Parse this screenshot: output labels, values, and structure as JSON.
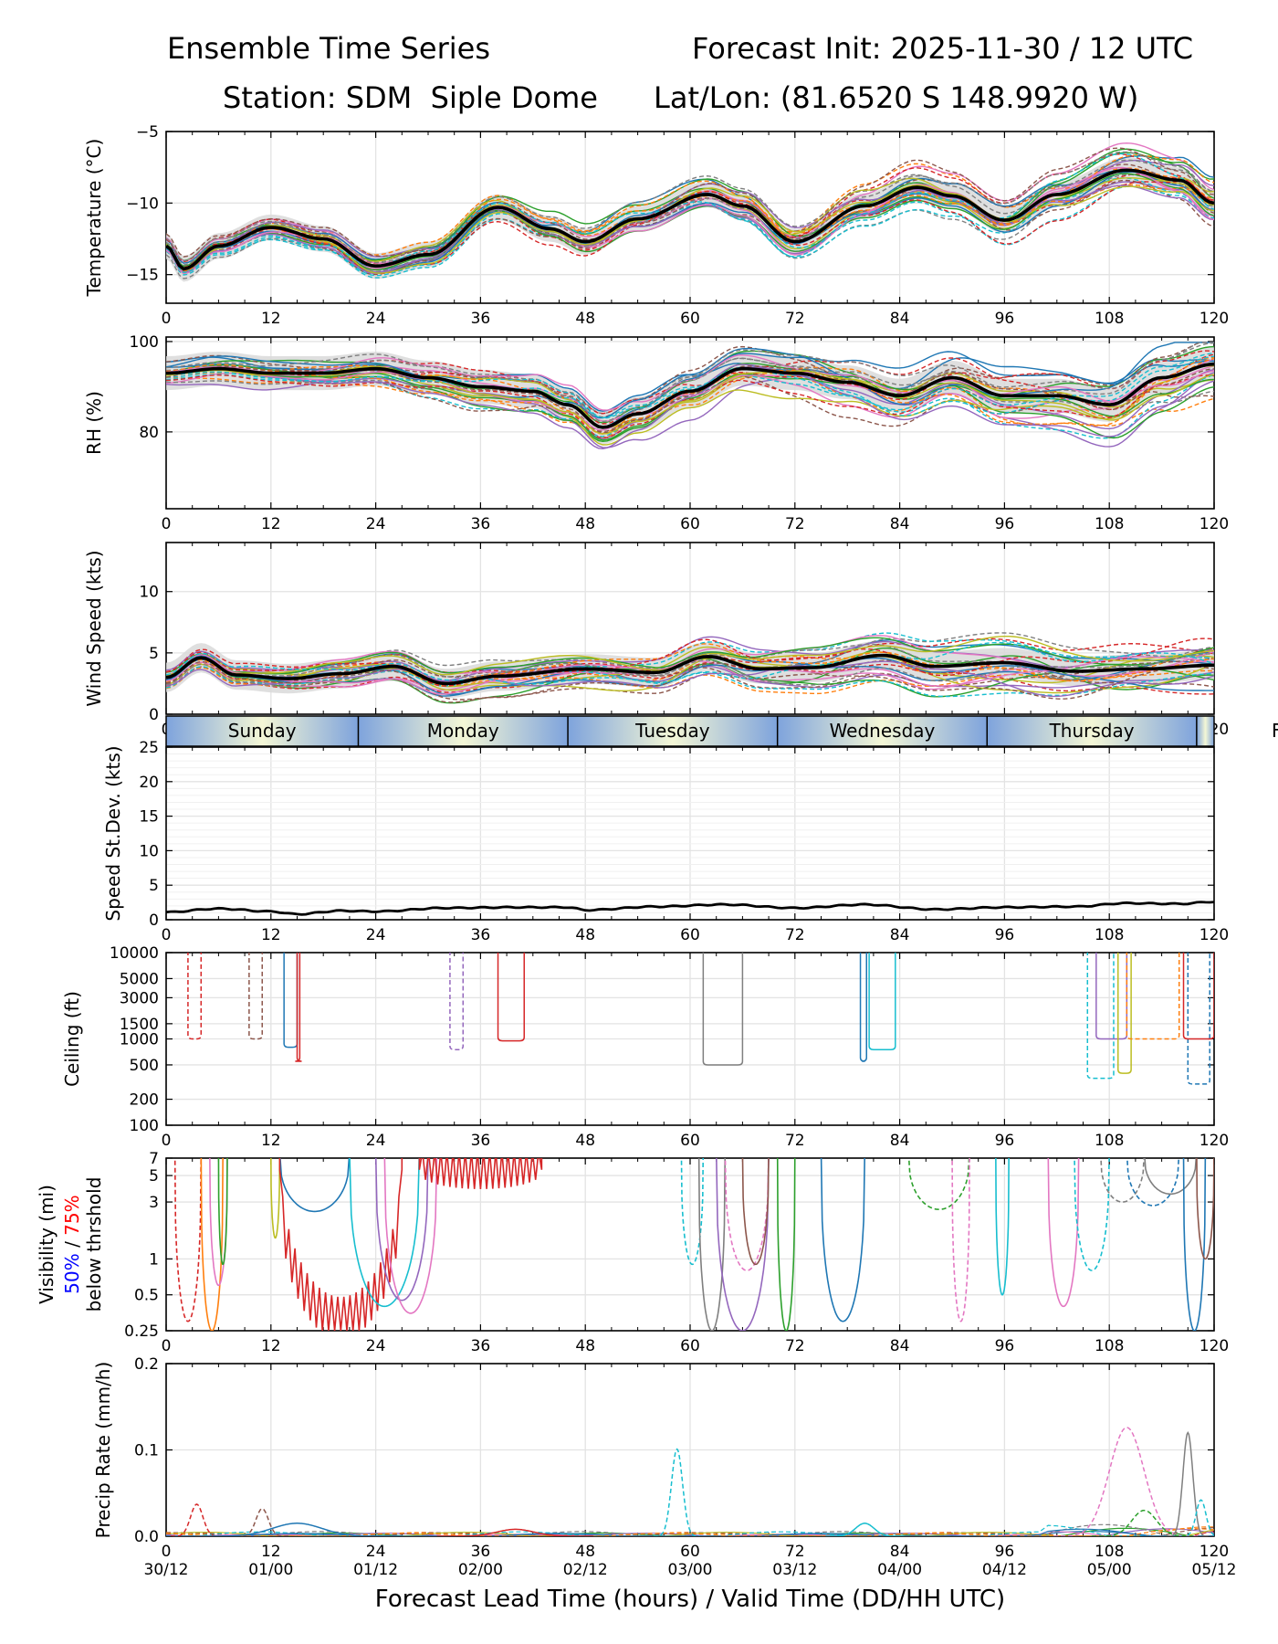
{
  "header": {
    "title_left": "Ensemble Time Series",
    "title_right": "Forecast Init: 2025-11-30 / 12 UTC",
    "station": "Station: SDM  Siple Dome",
    "latlon": "Lat/Lon: (81.6520 S 148.9920 W)"
  },
  "colors": {
    "mean": "#000000",
    "spread": "#d9d9d9",
    "members": [
      "#1f77b4",
      "#ff7f0e",
      "#2ca02c",
      "#d62728",
      "#9467bd",
      "#8c564b",
      "#e377c2",
      "#7f7f7f",
      "#bcbd22",
      "#17becf"
    ],
    "vis50": "#0000ff",
    "vis75": "#ff0000",
    "day_band_edge": "#7ea3dc",
    "day_band_center": "#f4f7d6"
  },
  "chart_data": [
    {
      "id": "temp",
      "type": "line",
      "ylabel": "Temperature (°C)",
      "ylim": [
        -17,
        -5
      ],
      "yticks": [
        -15,
        -10,
        -5
      ],
      "yticklabels": [
        "−15",
        "−10",
        "−5"
      ],
      "xlim": [
        0,
        120
      ],
      "xticks": [
        0,
        12,
        24,
        36,
        48,
        60,
        72,
        84,
        96,
        108,
        120
      ],
      "mean": {
        "x": [
          0,
          2,
          6,
          12,
          18,
          24,
          30,
          38,
          44,
          48,
          54,
          62,
          66,
          72,
          80,
          86,
          90,
          96,
          102,
          110,
          116,
          120
        ],
        "y": [
          -13.0,
          -14.6,
          -13.0,
          -11.7,
          -12.5,
          -14.4,
          -13.6,
          -10.3,
          -11.8,
          -12.7,
          -11.1,
          -9.4,
          -10.2,
          -12.7,
          -10.2,
          -8.9,
          -9.5,
          -11.2,
          -9.4,
          -7.7,
          -8.4,
          -10.0
        ]
      },
      "members": 30,
      "member_spread": 1.2,
      "note": "members are many colored solid/dashed lines around the mean with a grey spread band"
    },
    {
      "id": "rh",
      "type": "line",
      "ylabel": "RH (%)",
      "ylim": [
        63,
        101
      ],
      "yticks": [
        80,
        100
      ],
      "yticklabels": [
        "80",
        "100"
      ],
      "xlim": [
        0,
        120
      ],
      "xticks": [
        0,
        12,
        24,
        36,
        48,
        60,
        72,
        84,
        96,
        108,
        120
      ],
      "mean": {
        "x": [
          0,
          6,
          12,
          18,
          24,
          30,
          36,
          42,
          46,
          50,
          54,
          60,
          66,
          72,
          78,
          84,
          90,
          96,
          102,
          108,
          114,
          120
        ],
        "y": [
          93,
          94,
          93,
          93,
          94,
          92,
          90,
          89,
          86,
          81,
          84,
          89,
          94,
          93,
          91,
          88,
          92,
          88,
          88,
          86,
          92,
          95
        ]
      },
      "members": 30,
      "member_spread": 5
    },
    {
      "id": "wind",
      "type": "line",
      "ylabel": "Wind Speed (kts)",
      "ylim": [
        0,
        14
      ],
      "yticks": [
        0,
        5,
        10
      ],
      "yticklabels": [
        "0",
        "5",
        "10"
      ],
      "xlim": [
        0,
        120
      ],
      "xticks": [
        0,
        12,
        24,
        36,
        48,
        60,
        72,
        84,
        96,
        108,
        120
      ],
      "mean": {
        "x": [
          0,
          4,
          8,
          14,
          20,
          26,
          32,
          38,
          48,
          56,
          62,
          68,
          74,
          82,
          88,
          96,
          104,
          112,
          120
        ],
        "y": [
          3.0,
          4.6,
          3.2,
          2.9,
          3.3,
          3.9,
          2.5,
          3.1,
          3.7,
          3.4,
          4.7,
          3.7,
          3.8,
          4.8,
          3.9,
          4.2,
          3.5,
          3.7,
          4.0
        ]
      },
      "members": 30,
      "member_spread": 1.6
    },
    {
      "id": "days",
      "type": "table",
      "labels": [
        "Sunday",
        "Monday",
        "Tuesday",
        "Wednesday",
        "Thursday",
        "F"
      ],
      "boundaries_hours": [
        0,
        22,
        46,
        70,
        94,
        118,
        142
      ]
    },
    {
      "id": "speed_sd",
      "type": "line",
      "ylabel": "Speed St.Dev. (kts)",
      "ylim": [
        0,
        25
      ],
      "yticks": [
        0,
        5,
        10,
        15,
        20,
        25
      ],
      "yticklabels": [
        "0",
        "5",
        "10",
        "15",
        "20",
        "25"
      ],
      "xlim": [
        0,
        120
      ],
      "xticks": [
        0,
        12,
        24,
        36,
        48,
        60,
        72,
        84,
        96,
        108,
        120
      ],
      "mean": {
        "x": [
          0,
          6,
          12,
          15,
          20,
          24,
          32,
          40,
          46,
          48,
          56,
          64,
          72,
          80,
          88,
          96,
          104,
          110,
          116,
          120
        ],
        "y": [
          1.1,
          1.6,
          1.2,
          0.8,
          1.3,
          1.2,
          1.7,
          1.8,
          1.8,
          1.4,
          1.9,
          2.2,
          1.7,
          2.2,
          1.5,
          1.8,
          1.9,
          2.4,
          2.3,
          2.6
        ]
      }
    },
    {
      "id": "ceiling",
      "type": "line",
      "ylabel": "Ceiling (ft)",
      "yscale": "log",
      "ylim": [
        100,
        10000
      ],
      "yticks": [
        100,
        200,
        500,
        1000,
        1500,
        3000,
        5000,
        10000
      ],
      "yticklabels": [
        "100",
        "200",
        "500",
        "1000",
        "1500",
        "3000",
        "5000",
        "10000"
      ],
      "xlim": [
        0,
        120
      ],
      "xticks": [
        0,
        12,
        24,
        36,
        48,
        60,
        72,
        84,
        96,
        108,
        120
      ],
      "events": [
        {
          "x0": 2.5,
          "x1": 4.0,
          "y": 1000,
          "c": 3,
          "dash": true
        },
        {
          "x0": 9.5,
          "x1": 11.0,
          "y": 1000,
          "c": 5,
          "dash": true
        },
        {
          "x0": 13.5,
          "x1": 15.0,
          "y": 800,
          "c": 0,
          "dash": false
        },
        {
          "x0": 15.0,
          "x1": 15.3,
          "y": 550,
          "c": 3,
          "dash": false
        },
        {
          "x0": 32.5,
          "x1": 34.0,
          "y": 750,
          "c": 4,
          "dash": true
        },
        {
          "x0": 38.0,
          "x1": 41.0,
          "y": 950,
          "c": 3,
          "dash": false
        },
        {
          "x0": 61.5,
          "x1": 66.0,
          "y": 500,
          "c": 7,
          "dash": false
        },
        {
          "x0": 79.5,
          "x1": 80.2,
          "y": 550,
          "c": 0,
          "dash": false
        },
        {
          "x0": 80.5,
          "x1": 83.5,
          "y": 750,
          "c": 9,
          "dash": false
        },
        {
          "x0": 105.5,
          "x1": 108.5,
          "y": 350,
          "c": 9,
          "dash": true
        },
        {
          "x0": 106.5,
          "x1": 110.0,
          "y": 1000,
          "c": 4,
          "dash": false
        },
        {
          "x0": 109.0,
          "x1": 110.5,
          "y": 400,
          "c": 8,
          "dash": false
        },
        {
          "x0": 110.0,
          "x1": 116.0,
          "y": 1000,
          "c": 1,
          "dash": true
        },
        {
          "x0": 117.0,
          "x1": 119.5,
          "y": 300,
          "c": 0,
          "dash": true
        },
        {
          "x0": 116.5,
          "x1": 120.0,
          "y": 1000,
          "c": 3,
          "dash": false
        }
      ]
    },
    {
      "id": "visibility",
      "type": "line",
      "ylabel": "Visibility (mi)",
      "ylabel_line2_a": "50%",
      "ylabel_line2_sep": " / ",
      "ylabel_line2_b": "75%",
      "ylabel_line3": "below thrshold",
      "yscale": "log",
      "ylim": [
        0.25,
        7
      ],
      "yticks": [
        0.25,
        0.5,
        1,
        3,
        5,
        7
      ],
      "yticklabels": [
        "0.25",
        "0.5",
        "1",
        "3",
        "5",
        "7"
      ],
      "xlim": [
        0,
        120
      ],
      "xticks": [
        0,
        12,
        24,
        36,
        48,
        60,
        72,
        84,
        96,
        108,
        120
      ],
      "events": [
        {
          "x0": 1.0,
          "x1": 4.0,
          "y": 0.3,
          "c": 3,
          "dash": true
        },
        {
          "x0": 4.0,
          "x1": 6.5,
          "y": 0.25,
          "c": 1,
          "dash": false
        },
        {
          "x0": 5.0,
          "x1": 7.0,
          "y": 0.6,
          "c": 6,
          "dash": false
        },
        {
          "x0": 6.0,
          "x1": 7.0,
          "y": 0.9,
          "c": 2,
          "dash": false
        },
        {
          "x0": 12.0,
          "x1": 13.0,
          "y": 1.5,
          "c": 8,
          "dash": false
        },
        {
          "x0": 13.0,
          "x1": 21.0,
          "y": 2.5,
          "c": 0,
          "dash": false
        },
        {
          "x0": 13.0,
          "x1": 27.0,
          "y": 0.3,
          "c": 3,
          "dash": false
        },
        {
          "x0": 21.0,
          "x1": 29.0,
          "y": 0.4,
          "c": 9,
          "dash": false
        },
        {
          "x0": 24.0,
          "x1": 30.0,
          "y": 0.45,
          "c": 4,
          "dash": false
        },
        {
          "x0": 25.0,
          "x1": 31.0,
          "y": 0.35,
          "c": 6,
          "dash": false
        },
        {
          "x0": 29.0,
          "x1": 43.0,
          "y": 5.5,
          "c": 3,
          "dash": false
        },
        {
          "x0": 59.0,
          "x1": 61.5,
          "y": 0.9,
          "c": 9,
          "dash": true
        },
        {
          "x0": 61.0,
          "x1": 64.0,
          "y": 0.25,
          "c": 7,
          "dash": false
        },
        {
          "x0": 63.0,
          "x1": 69.0,
          "y": 0.25,
          "c": 4,
          "dash": false
        },
        {
          "x0": 64.0,
          "x1": 69.0,
          "y": 0.8,
          "c": 6,
          "dash": true
        },
        {
          "x0": 66.0,
          "x1": 69.0,
          "y": 0.9,
          "c": 5,
          "dash": false
        },
        {
          "x0": 70.0,
          "x1": 72.0,
          "y": 0.25,
          "c": 2,
          "dash": false
        },
        {
          "x0": 75.0,
          "x1": 80.0,
          "y": 0.3,
          "c": 0,
          "dash": false
        },
        {
          "x0": 85.0,
          "x1": 92.0,
          "y": 2.6,
          "c": 2,
          "dash": true
        },
        {
          "x0": 90.0,
          "x1": 92.0,
          "y": 0.3,
          "c": 6,
          "dash": true
        },
        {
          "x0": 95.0,
          "x1": 96.5,
          "y": 0.5,
          "c": 9,
          "dash": false
        },
        {
          "x0": 101.0,
          "x1": 104.5,
          "y": 0.4,
          "c": 6,
          "dash": false
        },
        {
          "x0": 104.0,
          "x1": 108.0,
          "y": 0.8,
          "c": 9,
          "dash": true
        },
        {
          "x0": 107.0,
          "x1": 112.0,
          "y": 3.0,
          "c": 7,
          "dash": true
        },
        {
          "x0": 110.0,
          "x1": 116.0,
          "y": 2.8,
          "c": 0,
          "dash": true
        },
        {
          "x0": 112.0,
          "x1": 118.0,
          "y": 3.5,
          "c": 7,
          "dash": false
        },
        {
          "x0": 116.5,
          "x1": 119.0,
          "y": 0.25,
          "c": 0,
          "dash": false
        },
        {
          "x0": 118.0,
          "x1": 120.0,
          "y": 1.0,
          "c": 5,
          "dash": false
        }
      ]
    },
    {
      "id": "precip",
      "type": "line",
      "ylabel": "Precip Rate (mm/h)",
      "ylim": [
        0,
        0.2
      ],
      "yticks": [
        0.0,
        0.1,
        0.2
      ],
      "yticklabels": [
        "0.0",
        "0.1",
        "0.2"
      ],
      "xlim": [
        0,
        120
      ],
      "xticks": [
        0,
        12,
        24,
        36,
        48,
        60,
        72,
        84,
        96,
        108,
        120
      ],
      "xticklabels_hours": [
        "0",
        "12",
        "24",
        "36",
        "48",
        "60",
        "72",
        "84",
        "96",
        "108",
        "120"
      ],
      "xticklabels_valid": [
        "30/12",
        "01/00",
        "01/12",
        "02/00",
        "02/12",
        "03/00",
        "03/12",
        "04/00",
        "04/12",
        "05/00",
        "05/12"
      ],
      "xlabel": "Forecast Lead Time (hours) / Valid Time (DD/HH UTC)",
      "peaks": [
        {
          "x": 3.5,
          "y": 0.037,
          "w": 1.0,
          "c": 3,
          "dash": true
        },
        {
          "x": 11.0,
          "y": 0.032,
          "w": 1.0,
          "c": 5,
          "dash": true
        },
        {
          "x": 15.0,
          "y": 0.015,
          "w": 4.0,
          "c": 0,
          "dash": false
        },
        {
          "x": 40.0,
          "y": 0.008,
          "w": 3.0,
          "c": 3,
          "dash": false
        },
        {
          "x": 58.5,
          "y": 0.101,
          "w": 0.9,
          "c": 9,
          "dash": true
        },
        {
          "x": 80.0,
          "y": 0.015,
          "w": 1.5,
          "c": 9,
          "dash": false
        },
        {
          "x": 110.0,
          "y": 0.126,
          "w": 2.8,
          "c": 6,
          "dash": true
        },
        {
          "x": 117.0,
          "y": 0.12,
          "w": 0.8,
          "c": 7,
          "dash": false
        },
        {
          "x": 118.5,
          "y": 0.042,
          "w": 0.8,
          "c": 9,
          "dash": true
        },
        {
          "x": 112.0,
          "y": 0.03,
          "w": 2.0,
          "c": 2,
          "dash": true
        }
      ]
    }
  ]
}
